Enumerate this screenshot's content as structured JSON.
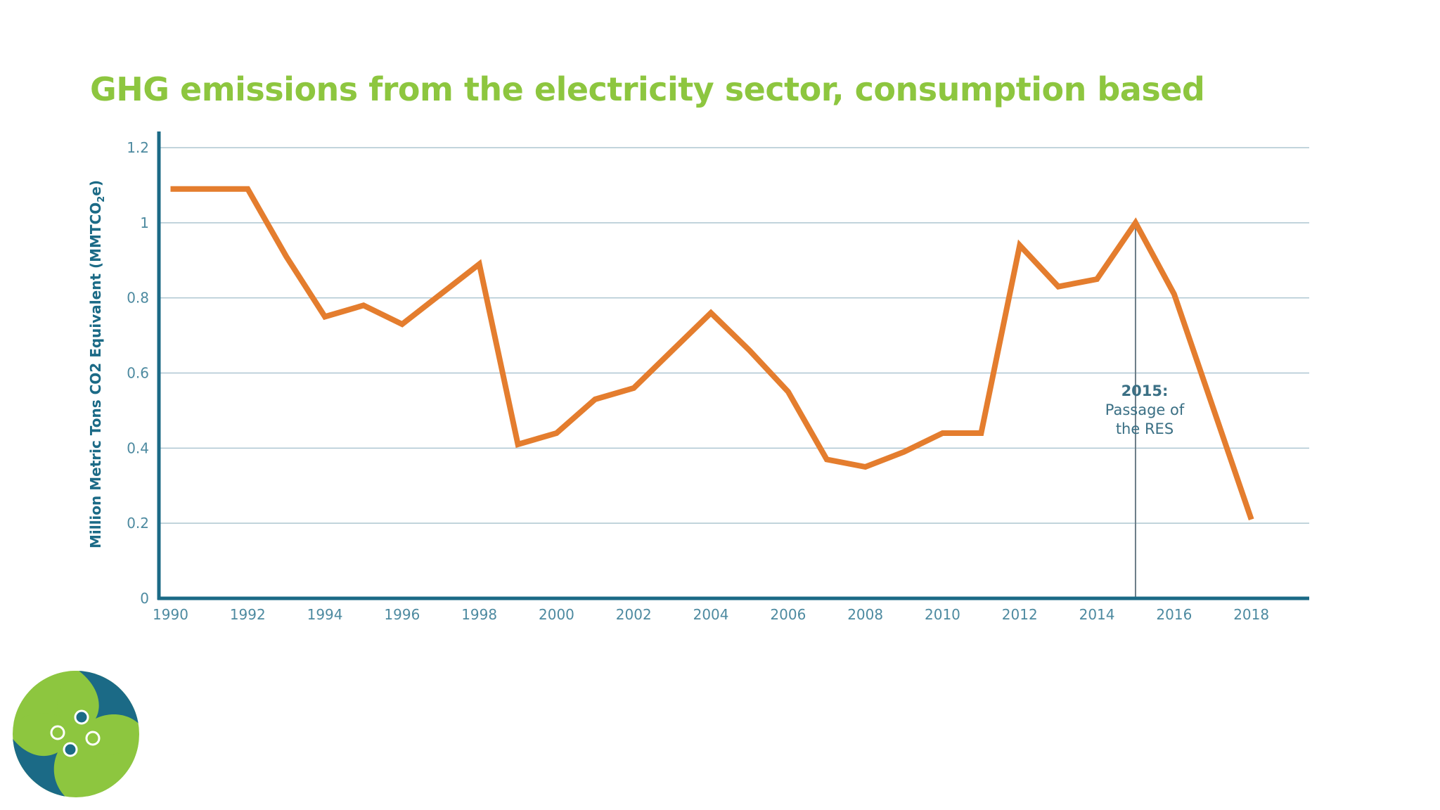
{
  "title": "GHG emissions from the electricity sector, consumption based",
  "ylabel_main": "Million Metric Tons CO2 Equivalent (MMTCO",
  "ylabel_sub": "2",
  "ylabel_end": "e)",
  "annotation": {
    "year_label": "2015:",
    "text": "Passage of the RES",
    "x": 2015
  },
  "logo": {
    "name": "organization-logo"
  },
  "colors": {
    "title": "#8dc63f",
    "axis": "#1b6a86",
    "line": "#e47d2e",
    "grid": "#aec6d1",
    "tick_label": "#4d8aa0",
    "annotation_line": "#6b7c87",
    "annotation_text": "#3a6f84",
    "logo_green": "#8dc63f",
    "logo_blue": "#1b6a86"
  },
  "chart_data": {
    "type": "line",
    "title": "GHG emissions from the electricity sector, consumption based",
    "xlabel": "",
    "ylabel": "Million Metric Tons CO2 Equivalent (MMTCO2e)",
    "xlim": [
      1989.7,
      2019.5
    ],
    "ylim": [
      0,
      1.2
    ],
    "yticks": [
      0,
      0.2,
      0.4,
      0.6,
      0.8,
      1,
      1.2
    ],
    "ytick_labels": [
      "0",
      "0.2",
      "0.4",
      "0.6",
      "0.8",
      "1",
      "1.2"
    ],
    "xticks": [
      1990,
      1992,
      1994,
      1996,
      1998,
      2000,
      2002,
      2004,
      2006,
      2008,
      2010,
      2012,
      2014,
      2016,
      2018
    ],
    "xtick_labels": [
      "1990",
      "1992",
      "1994",
      "1996",
      "1998",
      "2000",
      "2002",
      "2004",
      "2006",
      "2008",
      "2010",
      "2012",
      "2014",
      "2016",
      "2018"
    ],
    "grid": true,
    "series": [
      {
        "name": "GHG emissions",
        "x": [
          1990,
          1991,
          1992,
          1993,
          1994,
          1995,
          1996,
          1997,
          1998,
          1999,
          2000,
          2001,
          2002,
          2003,
          2004,
          2005,
          2006,
          2007,
          2008,
          2009,
          2010,
          2011,
          2012,
          2013,
          2014,
          2015,
          2016,
          2017,
          2018
        ],
        "values": [
          1.09,
          1.09,
          1.09,
          0.91,
          0.75,
          0.78,
          0.73,
          0.81,
          0.89,
          0.41,
          0.44,
          0.53,
          0.56,
          0.66,
          0.76,
          0.66,
          0.55,
          0.37,
          0.35,
          0.39,
          0.44,
          0.44,
          0.94,
          0.83,
          0.85,
          1.0,
          0.81,
          0.51,
          0.21
        ]
      }
    ]
  }
}
